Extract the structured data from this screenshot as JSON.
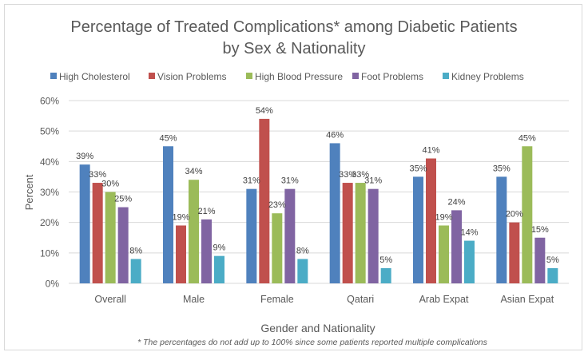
{
  "chart_data": {
    "type": "bar",
    "title": "Percentage of Treated Complications* among Diabetic Patients",
    "subtitle": "by Sex & Nationality",
    "xlabel": "Gender and Nationality",
    "ylabel": "Percent",
    "footnote": "* The percentages do not add up to 100% since some patients reported multiple complications",
    "ylim": [
      0,
      60
    ],
    "yticks": [
      0,
      10,
      20,
      30,
      40,
      50,
      60
    ],
    "ytick_labels": [
      "0%",
      "10%",
      "20%",
      "30%",
      "40%",
      "50%",
      "60%"
    ],
    "grid": true,
    "legend_position": "top",
    "categories": [
      "Overall",
      "Male",
      "Female",
      "Qatari",
      "Arab Expat",
      "Asian Expat"
    ],
    "series": [
      {
        "name": "High Cholesterol",
        "color": "#4f81bd",
        "values": [
          39,
          45,
          31,
          46,
          35,
          35
        ]
      },
      {
        "name": "Vision  Problems",
        "color": "#c0504d",
        "values": [
          33,
          19,
          54,
          33,
          41,
          20
        ]
      },
      {
        "name": "High Blood Pressure",
        "color": "#9bbb59",
        "values": [
          30,
          34,
          23,
          33,
          19,
          45
        ]
      },
      {
        "name": "Foot Problems",
        "color": "#8064a2",
        "values": [
          25,
          21,
          31,
          31,
          24,
          15
        ]
      },
      {
        "name": "Kidney Problems",
        "color": "#4bacc6",
        "values": [
          8,
          9,
          8,
          5,
          14,
          5
        ]
      }
    ],
    "value_label_suffix": "%"
  }
}
